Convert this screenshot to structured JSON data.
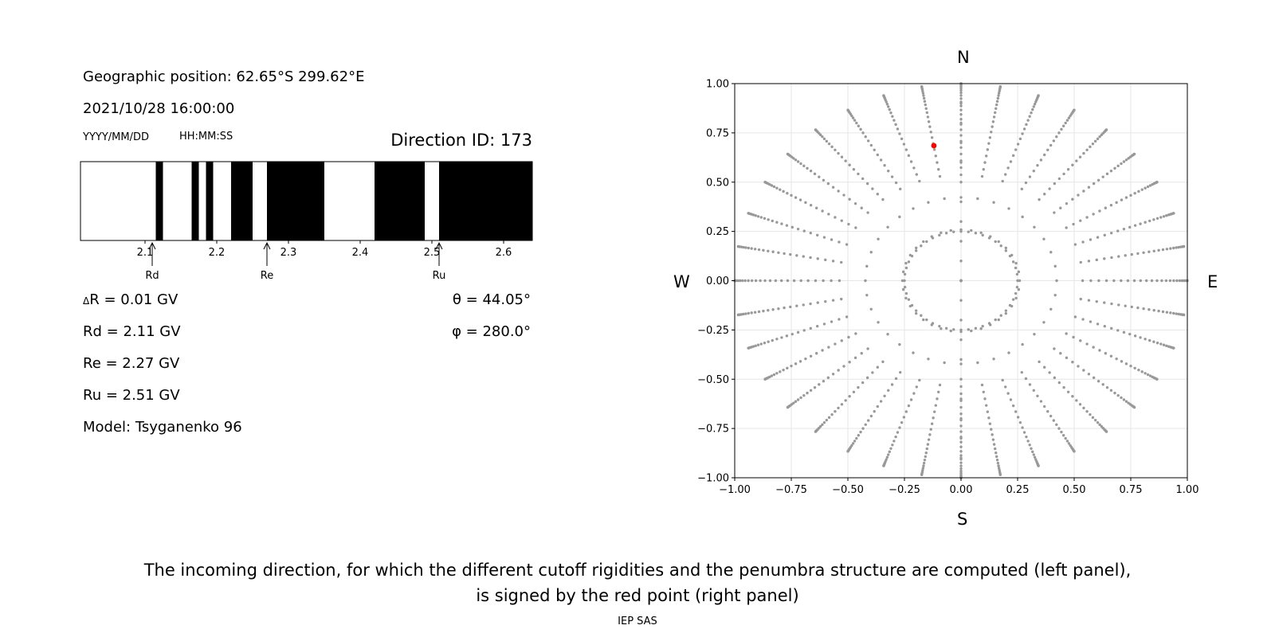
{
  "left_panel": {
    "geo_position": "Geographic position: 62.65°S 299.62°E",
    "datetime": "2021/10/28 16:00:00",
    "date_format": "YYYY/MM/DD",
    "time_format": "HH:MM:SS",
    "direction_id": "Direction ID: 173",
    "delta_r": "R = 0.01 GV",
    "delta_symbol": "Δ",
    "rd": "Rd = 2.11 GV",
    "re": "Re = 2.27 GV",
    "ru": "Ru = 2.51 GV",
    "model": "Model: Tsyganenko 96",
    "theta": "θ = 44.05°",
    "phi": "φ = 280.0°"
  },
  "compass": {
    "n": "N",
    "s": "S",
    "e": "E",
    "w": "W"
  },
  "caption": {
    "line1": "The incoming direction, for which the different cutoff rigidities and the penumbra structure are computed (left panel),",
    "line2": "is signed by the red point (right panel)",
    "credit": "IEP SAS"
  },
  "chart_data": [
    {
      "type": "penumbra-strip",
      "xlim": [
        2.01,
        2.64
      ],
      "x_ticks": [
        2.1,
        2.2,
        2.3,
        2.4,
        2.5,
        2.6
      ],
      "x_tick_labels": [
        "2.1",
        "2.2",
        "2.3",
        "2.4",
        "2.5",
        "2.6"
      ],
      "forbidden_bands": [
        [
          2.115,
          2.125
        ],
        [
          2.165,
          2.175
        ],
        [
          2.185,
          2.195
        ],
        [
          2.22,
          2.25
        ],
        [
          2.27,
          2.35
        ],
        [
          2.42,
          2.49
        ],
        [
          2.51,
          2.64
        ]
      ],
      "markers": [
        {
          "label": "Rd",
          "value": 2.11
        },
        {
          "label": "Re",
          "value": 2.27
        },
        {
          "label": "Ru",
          "value": 2.51
        }
      ],
      "colors": {
        "allowed": "#ffffff",
        "forbidden": "#000000"
      }
    },
    {
      "type": "scatter",
      "xlim": [
        -1,
        1
      ],
      "ylim": [
        -1,
        1
      ],
      "x_ticks": [
        -1,
        -0.75,
        -0.5,
        -0.25,
        0,
        0.25,
        0.5,
        0.75,
        1
      ],
      "x_tick_labels": [
        "−1.00",
        "−0.75",
        "−0.50",
        "−0.25",
        "0.00",
        "0.25",
        "0.50",
        "0.75",
        "1.00"
      ],
      "y_ticks": [
        -1,
        -0.75,
        -0.5,
        -0.25,
        0,
        0.25,
        0.5,
        0.75,
        1
      ],
      "y_tick_labels": [
        "−1.00",
        "−0.75",
        "−0.50",
        "−0.25",
        "0.00",
        "0.25",
        "0.50",
        "0.75",
        "1.00"
      ],
      "grid": true,
      "directions_grid": {
        "azimuth_step_deg": 10,
        "zenith_max_deg": 90,
        "zenith_step_deg": 2.5,
        "sparse_ring_radii": [
          0.25,
          0.42
        ],
        "color": "#999999"
      },
      "highlight_point": {
        "x": -0.12,
        "y": 0.685,
        "color": "#ff0000"
      }
    }
  ]
}
